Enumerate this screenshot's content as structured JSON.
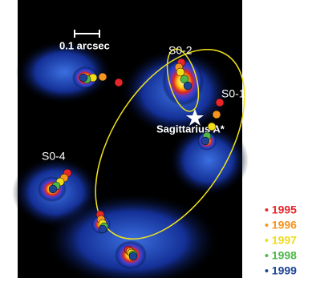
{
  "scale_bar": "0.1 arcsec",
  "labels": {
    "s02": "S0-2",
    "s01": "S0-1",
    "sgr": "Sagittarius A*",
    "s04": "S0-4"
  },
  "legend": [
    {
      "label": "• 1995",
      "color": "#e8262a"
    },
    {
      "label": "• 1996",
      "color": "#f7941d"
    },
    {
      "label": "• 1997",
      "color": "#f0dc1a"
    },
    {
      "label": "• 1998",
      "color": "#4cb848"
    },
    {
      "label": "• 1999",
      "color": "#1d4396"
    }
  ]
}
